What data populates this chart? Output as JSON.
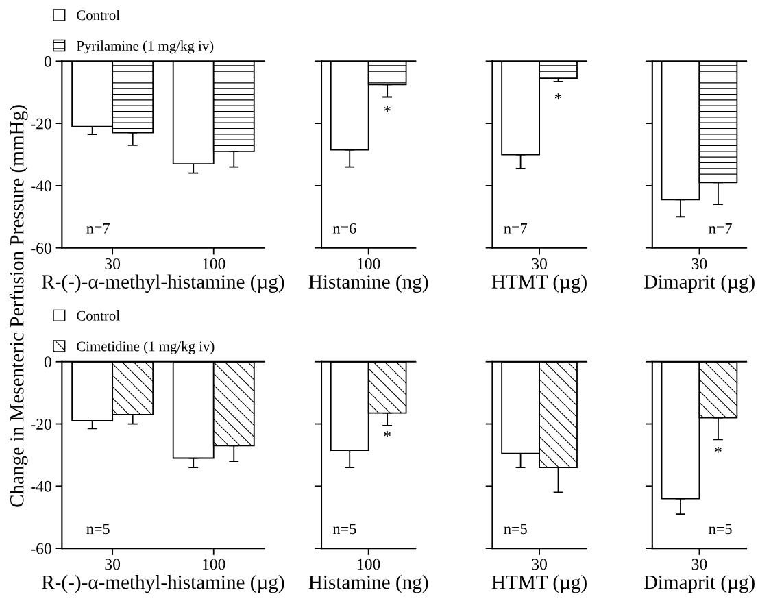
{
  "chart_data": [
    {
      "type": "bar",
      "categories": [
        "30",
        "100"
      ],
      "xlabel": "R-(-)-α-methyl-histamine (µg)",
      "ylabel": "Change in Mesenteric Perfusion Pressure (mmHg)",
      "ylim": [
        -60,
        0
      ],
      "yticks": [
        0,
        -20,
        -40,
        -60
      ],
      "legend": "top left",
      "annotations": [
        "n=7"
      ],
      "series": [
        {
          "name": "Control",
          "color": "#ffffff",
          "values": [
            -21,
            -33
          ],
          "errors": [
            [
              -23.5,
              -21
            ],
            [
              -36,
              -33
            ]
          ]
        },
        {
          "name": "Pyrilamine (1 mg/kg iv)",
          "color": "#000000",
          "values": [
            -23,
            -29
          ],
          "errors": [
            [
              -27,
              -23
            ],
            [
              -34,
              -29
            ]
          ]
        }
      ]
    },
    {
      "type": "bar",
      "categories": [
        "100"
      ],
      "xlabel": "Histamine (ng)",
      "ylim": [
        -60,
        0
      ],
      "yticks": [
        0,
        -20,
        -40,
        -60
      ],
      "tick_labels": "x",
      "annotations": [
        "n=6",
        {
          "text": "*",
          "x": "100",
          "y": -16.5
        }
      ],
      "series": [
        {
          "color": "#ffffff",
          "values": [
            -28.5
          ],
          "errors": [
            [
              -34,
              -28.5
            ]
          ]
        },
        {
          "color": "#000000",
          "values": [
            -7.5
          ],
          "errors": [
            [
              -11.5,
              -7.5
            ]
          ]
        }
      ]
    },
    {
      "type": "bar",
      "categories": [
        "30"
      ],
      "xlabel": "HTMT (µg)",
      "ylim": [
        -60,
        0
      ],
      "yticks": [
        0,
        -20,
        -40,
        -60
      ],
      "tick_labels": "x",
      "annotations": [
        "n=7",
        {
          "text": "*",
          "x": "30",
          "y": -12.5
        }
      ],
      "series": [
        {
          "color": "#ffffff",
          "values": [
            -30
          ],
          "errors": [
            [
              -34.5,
              -30
            ]
          ]
        },
        {
          "color": "#000000",
          "values": [
            -5.5
          ],
          "errors": [
            [
              -6.5,
              -5.5
            ]
          ]
        }
      ]
    },
    {
      "type": "bar",
      "categories": [
        "30"
      ],
      "xlabel": "Dimaprit (µg)",
      "ylim": [
        -60,
        0
      ],
      "yticks": [
        0,
        -20,
        -40,
        -60
      ],
      "tick_labels": "x",
      "annotations": [
        "n=7"
      ],
      "series": [
        {
          "color": "#ffffff",
          "values": [
            -44.5
          ],
          "errors": [
            [
              -50,
              -44.5
            ]
          ]
        },
        {
          "color": "#000000",
          "values": [
            -39
          ],
          "errors": [
            [
              -46,
              -39
            ]
          ]
        }
      ]
    },
    {
      "type": "bar",
      "categories": [
        "30",
        "100"
      ],
      "xlabel": "R-(-)-α-methyl-histamine (µg)",
      "ylim": [
        -60,
        0
      ],
      "yticks": [
        0,
        -20,
        -40,
        -60
      ],
      "legend": "top left",
      "annotations": [
        "n=5"
      ],
      "series": [
        {
          "name": "Control",
          "color": "#ffffff",
          "values": [
            -19,
            -31
          ],
          "errors": [
            [
              -21.5,
              -19
            ],
            [
              -34,
              -31
            ]
          ]
        },
        {
          "name": "Cimetidine (1 mg/kg iv)",
          "color": "#000000",
          "values": [
            -17,
            -27
          ],
          "errors": [
            [
              -20,
              -17
            ],
            [
              -32,
              -27
            ]
          ]
        }
      ]
    },
    {
      "type": "bar",
      "categories": [
        "100"
      ],
      "xlabel": "Histamine (ng)",
      "ylim": [
        -60,
        0
      ],
      "yticks": [
        0,
        -20,
        -40,
        -60
      ],
      "tick_labels": "x",
      "annotations": [
        "n=5",
        {
          "text": "*",
          "x": "100",
          "y": -24.5
        }
      ],
      "series": [
        {
          "color": "#ffffff",
          "values": [
            -28.5
          ],
          "errors": [
            [
              -34,
              -28.5
            ]
          ]
        },
        {
          "color": "#000000",
          "values": [
            -16.5
          ],
          "errors": [
            [
              -20.5,
              -16.5
            ]
          ]
        }
      ]
    },
    {
      "type": "bar",
      "categories": [
        "30"
      ],
      "xlabel": "HTMT (µg)",
      "ylim": [
        -60,
        0
      ],
      "yticks": [
        0,
        -20,
        -40,
        -60
      ],
      "tick_labels": "x",
      "annotations": [
        "n=5"
      ],
      "series": [
        {
          "color": "#ffffff",
          "values": [
            -29.5
          ],
          "errors": [
            [
              -34,
              -29.5
            ]
          ]
        },
        {
          "color": "#000000",
          "values": [
            -34
          ],
          "errors": [
            [
              -42,
              -34
            ]
          ]
        }
      ]
    },
    {
      "type": "bar",
      "categories": [
        "30"
      ],
      "xlabel": "Dimaprit (µg)",
      "ylim": [
        -60,
        0
      ],
      "yticks": [
        0,
        -20,
        -40,
        -60
      ],
      "tick_labels": "x",
      "annotations": [
        "n=5",
        {
          "text": "*",
          "x": "30",
          "y": -29.5
        }
      ],
      "series": [
        {
          "color": "#ffffff",
          "values": [
            -44
          ],
          "errors": [
            [
              -49,
              -44
            ]
          ]
        },
        {
          "color": "#000000",
          "values": [
            -18
          ],
          "errors": [
            [
              -25,
              -18
            ]
          ]
        }
      ]
    }
  ]
}
